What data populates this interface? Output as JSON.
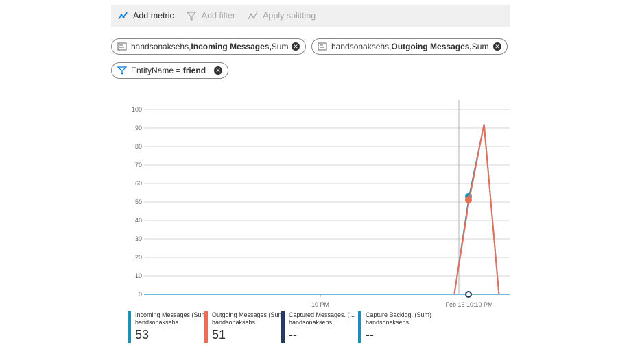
{
  "toolbar": {
    "add_metric": "Add metric",
    "add_filter": "Add filter",
    "apply_splitting": "Apply splitting"
  },
  "pills": [
    {
      "prefix": "handsonaksehs, ",
      "metric": "Incoming Messages,",
      "agg": " Sum"
    },
    {
      "prefix": "handsonaksehs, ",
      "metric": "Outgoing Messages,",
      "agg": " Sum"
    }
  ],
  "filter": {
    "field": "EntityName = ",
    "value": "friend"
  },
  "chart_data": {
    "type": "line",
    "ylim": [
      0,
      100
    ],
    "y_ticks": [
      "100",
      "90",
      "80",
      "70",
      "60",
      "50",
      "40",
      "30",
      "20",
      "10",
      "0"
    ],
    "x_ticks": [
      "10 PM",
      "Feb 16 10:10 PM"
    ],
    "series": [
      {
        "name": "Incoming Messages (Sum)",
        "color": "#1f8fb8",
        "x": [
          "10:09 PM",
          "10:10 PM",
          "10:11 PM",
          "10:12 PM"
        ],
        "values": [
          0,
          53,
          92,
          0
        ]
      },
      {
        "name": "Outgoing Messages (Sum)",
        "color": "#e8705a",
        "x": [
          "10:09 PM",
          "10:10 PM",
          "10:11 PM",
          "10:12 PM"
        ],
        "values": [
          0,
          51,
          92,
          0
        ]
      },
      {
        "name": "Captured Messages. (...",
        "color": "#243a5e",
        "x": [
          "10:10 PM"
        ],
        "values": [
          0
        ]
      }
    ]
  },
  "legend": [
    {
      "title": "Incoming Messages (Sum)",
      "sub": "handsonaksehs",
      "value": "53",
      "color": "#1f8fb8"
    },
    {
      "title": "Outgoing Messages (Sum)",
      "sub": "handsonaksehs",
      "value": "51",
      "color": "#e8705a"
    },
    {
      "title": "Captured Messages. (...",
      "sub": "handsonaksehs",
      "value": "--",
      "color": "#243a5e"
    },
    {
      "title": "Capture Backlog. (Sum)",
      "sub": "handsonaksehs",
      "value": "--",
      "color": "#1f8fb8"
    }
  ]
}
